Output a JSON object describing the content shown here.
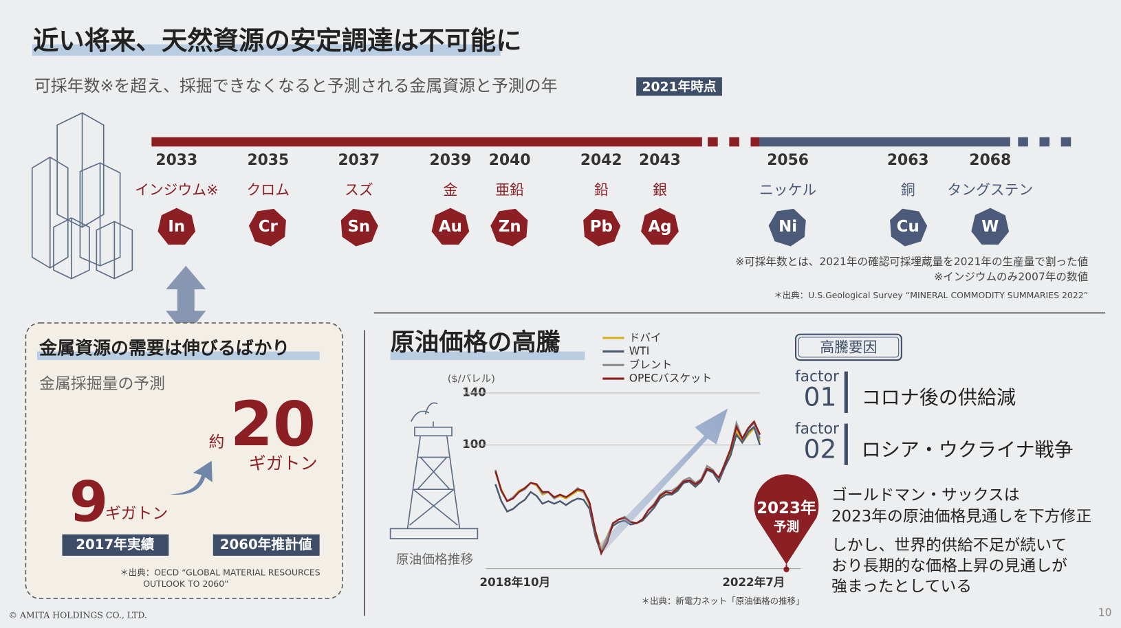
{
  "header": {
    "title": "近い将来、天然資源の安定調達は不可能に",
    "subtitle": "可採年数※を超え、採掘できなくなると予測される金属資源と予測の年",
    "badge": "2021年時点"
  },
  "timeline": {
    "items": [
      {
        "year": "2033",
        "name": "インジウム※",
        "symbol": "In",
        "color": "#8b1f24"
      },
      {
        "year": "2035",
        "name": "クロム",
        "symbol": "Cr",
        "color": "#8b1f24"
      },
      {
        "year": "2037",
        "name": "スズ",
        "symbol": "Sn",
        "color": "#8b1f24"
      },
      {
        "year": "2039",
        "name": "金",
        "symbol": "Au",
        "color": "#8b1f24"
      },
      {
        "year": "2040",
        "name": "亜鉛",
        "symbol": "Zn",
        "color": "#8b1f24"
      },
      {
        "year": "2042",
        "name": "鉛",
        "symbol": "Pb",
        "color": "#8b1f24"
      },
      {
        "year": "2043",
        "name": "銀",
        "symbol": "Ag",
        "color": "#8b1f24"
      },
      {
        "year": "2056",
        "name": "ニッケル",
        "symbol": "Ni",
        "color": "#4a5a78"
      },
      {
        "year": "2063",
        "name": "銅",
        "symbol": "Cu",
        "color": "#4a5a78"
      },
      {
        "year": "2068",
        "name": "タングステン",
        "symbol": "W",
        "color": "#4a5a78"
      }
    ],
    "notes": [
      "※可採年数とは、2021年の確認可採埋蔵量を2021年の生産量で割った値",
      "※インジウムのみ2007年の数値"
    ],
    "source": "＊出典：U.S.Geological Survey “MINERAL COMMODITY SUMMARIES 2022”"
  },
  "demand": {
    "title": "金属資源の需要は伸びるばかり",
    "subtitle": "金属採掘量の予測",
    "future_prefix": "約",
    "future_value": "20",
    "future_unit": "ギガトン",
    "past_value": "9",
    "past_unit": "ギガトン",
    "past_label": "2017年実績",
    "future_label": "2060年推計値",
    "source": [
      "＊出典：OECD “GLOBAL MATERIAL RESOURCES",
      "OUTLOOK TO 2060”"
    ]
  },
  "oil_chart": {
    "type": "line",
    "title": "原油価格の高騰",
    "y_label": "($/バレル)",
    "caption": "原油価格推移",
    "categories": [
      "2018年10月",
      null,
      null,
      null,
      null,
      null,
      null,
      null,
      null,
      null,
      null,
      null,
      null,
      null,
      null,
      null,
      null,
      null,
      null,
      null,
      null,
      null,
      null,
      null,
      null,
      null,
      null,
      null,
      null,
      null,
      null,
      null,
      null,
      null,
      null,
      null,
      null,
      null,
      null,
      null,
      null,
      null,
      null,
      null,
      null,
      "2022年7月"
    ],
    "ylim": [
      20,
      140
    ],
    "yticks": [
      100,
      140
    ],
    "grid": true,
    "series": [
      {
        "name": "ドバイ",
        "color": "#d4b020",
        "values": [
          79,
          66,
          57,
          60,
          65,
          67,
          71,
          69,
          62,
          64,
          59,
          61,
          59,
          62,
          65,
          64,
          54,
          34,
          20,
          30,
          40,
          43,
          44,
          41,
          40,
          43,
          50,
          54,
          60,
          64,
          62,
          66,
          71,
          73,
          69,
          72,
          82,
          80,
          73,
          83,
          95,
          111,
          102,
          108,
          113,
          103
        ]
      },
      {
        "name": "WTI",
        "color": "#4a5a70",
        "values": [
          70,
          57,
          49,
          51,
          55,
          58,
          64,
          61,
          55,
          57,
          55,
          57,
          54,
          57,
          59,
          58,
          51,
          30,
          17,
          29,
          38,
          41,
          42,
          39,
          40,
          42,
          47,
          52,
          59,
          62,
          62,
          65,
          71,
          72,
          68,
          72,
          81,
          79,
          72,
          83,
          92,
          108,
          102,
          110,
          114,
          100
        ]
      },
      {
        "name": "ブレント",
        "color": "#8c8c8c",
        "values": [
          81,
          65,
          57,
          60,
          64,
          66,
          71,
          70,
          63,
          64,
          59,
          62,
          60,
          63,
          67,
          64,
          55,
          33,
          18,
          29,
          40,
          43,
          45,
          41,
          40,
          43,
          50,
          55,
          62,
          65,
          65,
          68,
          73,
          75,
          71,
          74,
          84,
          81,
          74,
          86,
          97,
          117,
          105,
          112,
          117,
          105
        ]
      },
      {
        "name": "OPECバスケット",
        "color": "#8b1f1f",
        "values": [
          80,
          65,
          57,
          59,
          64,
          67,
          71,
          70,
          64,
          64,
          60,
          62,
          60,
          63,
          66,
          65,
          56,
          34,
          17,
          25,
          40,
          43,
          44,
          41,
          40,
          43,
          50,
          54,
          61,
          64,
          63,
          67,
          72,
          73,
          70,
          73,
          82,
          80,
          75,
          85,
          97,
          114,
          105,
          113,
          118,
          108
        ]
      }
    ],
    "forecast": [
      "2023年",
      "予測"
    ],
    "source": "＊出典：新電力ネット「原油価格の推移」"
  },
  "factors": {
    "title": "高騰要因",
    "items": [
      {
        "label": "factor",
        "number": "01",
        "text": "コロナ後の供給減"
      },
      {
        "label": "factor",
        "number": "02",
        "text": "ロシア・ウクライナ戦争"
      }
    ],
    "paragraphs": [
      [
        "ゴールドマン・サックスは",
        "2023年の原油価格見通しを下方修正"
      ],
      [
        "しかし、世界的供給不足が続いて",
        "おり長期的な価格上昇の見通しが",
        "強まったとしている"
      ]
    ]
  },
  "footer": {
    "copyright": "© AMITA HOLDINGS CO., LTD.",
    "page": "10"
  }
}
